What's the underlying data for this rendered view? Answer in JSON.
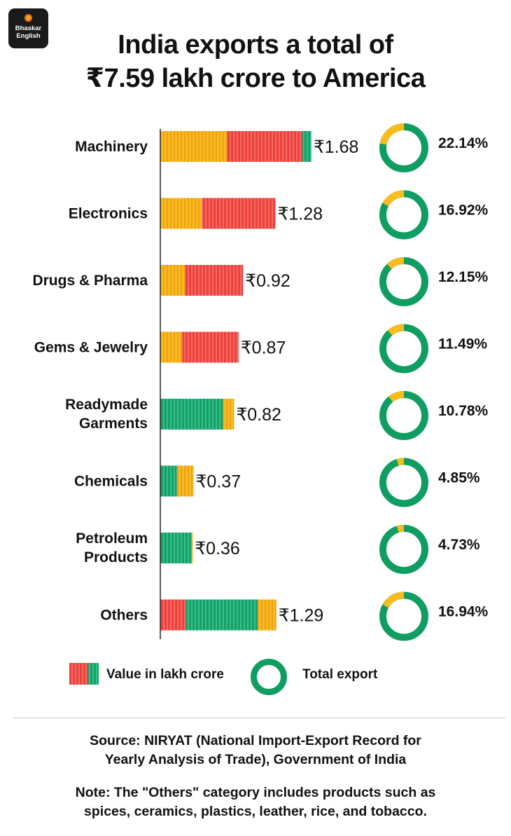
{
  "brand": {
    "line1": "Bhaskar",
    "line2": "English"
  },
  "title": {
    "line1": "India exports a total of",
    "line2": "₹7.59 lakh crore to America"
  },
  "colors": {
    "yellow": "#f7bc1e",
    "red": "#ec4141",
    "green": "#12a06a",
    "ring_green": "#0f9d62",
    "ring_yellow": "#f8bd1d"
  },
  "chart_data": {
    "type": "bar",
    "orientation": "horizontal",
    "title": "India exports a total of ₹7.59 lakh crore to America",
    "value_unit": "lakh crore",
    "value_prefix": "₹",
    "categories": [
      {
        "label": [
          "Machinery"
        ],
        "value": 1.68,
        "value_label": "₹1.68",
        "share_pct": 22.14,
        "share_label": "22.14%",
        "segments": [
          [
            "yellow",
            0.44
          ],
          [
            "red",
            0.5
          ],
          [
            "green",
            0.06
          ]
        ]
      },
      {
        "label": [
          "Electronics"
        ],
        "value": 1.28,
        "value_label": "₹1.28",
        "share_pct": 16.92,
        "share_label": "16.92%",
        "segments": [
          [
            "yellow",
            0.36
          ],
          [
            "red",
            0.64
          ]
        ]
      },
      {
        "label": [
          "Drugs & Pharma"
        ],
        "value": 0.92,
        "value_label": "₹0.92",
        "share_pct": 12.15,
        "share_label": "12.15%",
        "segments": [
          [
            "yellow",
            0.3
          ],
          [
            "red",
            0.7
          ]
        ]
      },
      {
        "label": [
          "Gems & Jewelry"
        ],
        "value": 0.87,
        "value_label": "₹0.87",
        "share_pct": 11.49,
        "share_label": "11.49%",
        "segments": [
          [
            "yellow",
            0.28
          ],
          [
            "red",
            0.72
          ]
        ]
      },
      {
        "label": [
          "Readymade",
          "Garments"
        ],
        "value": 0.82,
        "value_label": "₹0.82",
        "share_pct": 10.78,
        "share_label": "10.78%",
        "segments": [
          [
            "green",
            0.85
          ],
          [
            "yellow",
            0.15
          ]
        ]
      },
      {
        "label": [
          "Chemicals"
        ],
        "value": 0.37,
        "value_label": "₹0.37",
        "share_pct": 4.85,
        "share_label": "4.85%",
        "segments": [
          [
            "green",
            0.5
          ],
          [
            "yellow",
            0.5
          ]
        ]
      },
      {
        "label": [
          "Petroleum",
          "Products"
        ],
        "value": 0.36,
        "value_label": "₹0.36",
        "share_pct": 4.73,
        "share_label": "4.73%",
        "segments": [
          [
            "green",
            0.96
          ],
          [
            "yellow",
            0.04
          ]
        ]
      },
      {
        "label": [
          "Others"
        ],
        "value": 1.29,
        "value_label": "₹1.29",
        "share_pct": 16.94,
        "share_label": "16.94%",
        "segments": [
          [
            "red",
            0.22
          ],
          [
            "green",
            0.62
          ],
          [
            "yellow",
            0.16
          ]
        ]
      }
    ],
    "legend": {
      "bar": "Value in lakh crore",
      "ring": "Total export"
    }
  },
  "footer": {
    "source_line1": "Source: NIRYAT (National Import-Export Record for",
    "source_line2": "Yearly Analysis of Trade), Government of India",
    "note_line1": "Note: The \"Others\" category includes products such as",
    "note_line2": "spices, ceramics, plastics, leather, rice, and tobacco."
  }
}
